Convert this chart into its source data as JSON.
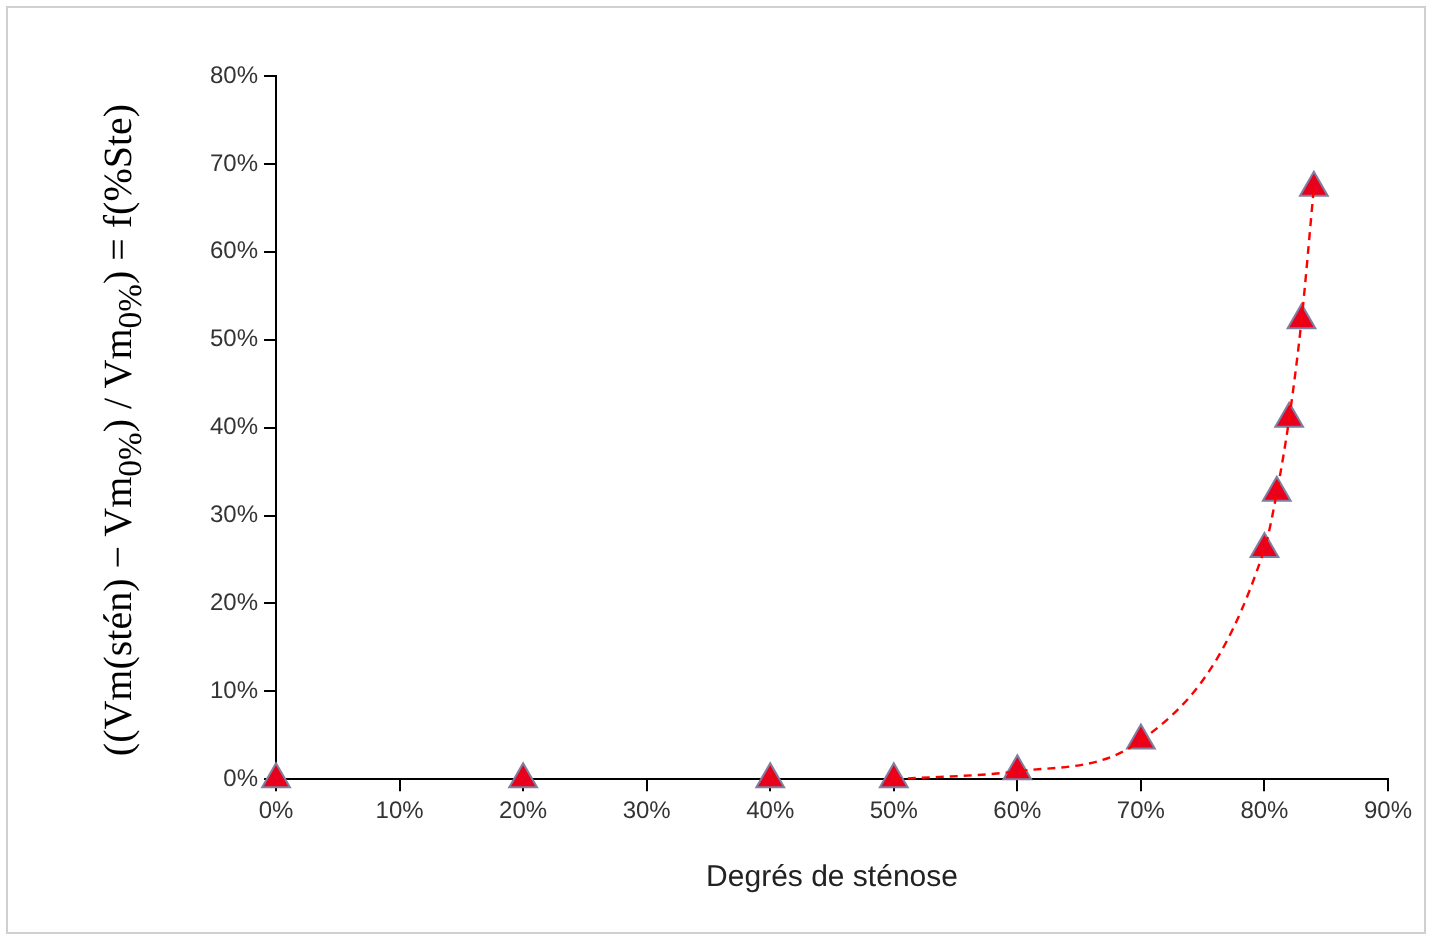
{
  "chart_data": {
    "type": "scatter",
    "xlabel": "Degrés de sténose",
    "ylabel": "((Vm(stén) − Vm$_{0%}$) / Vm$_{0%}$) = f(%Ste)",
    "xlim": [
      0,
      90
    ],
    "xticks": [
      {
        "value": 0,
        "label": "0%"
      },
      {
        "value": 10,
        "label": "10%"
      },
      {
        "value": 20,
        "label": "20%"
      },
      {
        "value": 30,
        "label": "30%"
      },
      {
        "value": 40,
        "label": "40%"
      },
      {
        "value": 50,
        "label": "50%"
      },
      {
        "value": 60,
        "label": "60%"
      },
      {
        "value": 70,
        "label": "70%"
      },
      {
        "value": 80,
        "label": "80%"
      },
      {
        "value": 90,
        "label": "90%"
      }
    ],
    "ylim": [
      0,
      80
    ],
    "yticks": [
      {
        "value": 0,
        "label": "0%"
      },
      {
        "value": 10,
        "label": "10%"
      },
      {
        "value": 20,
        "label": "20%"
      },
      {
        "value": 30,
        "label": "30%"
      },
      {
        "value": 40,
        "label": "40%"
      },
      {
        "value": 50,
        "label": "50%"
      },
      {
        "value": 60,
        "label": "60%"
      },
      {
        "value": 70,
        "label": "70%"
      },
      {
        "value": 80,
        "label": "80%"
      }
    ],
    "grid": false,
    "legend": false,
    "series": [
      {
        "type": "line",
        "color": "#ff0000",
        "marker": "none",
        "line_style": "dashed",
        "x": [
          50,
          60,
          70,
          80,
          81,
          82,
          83,
          84
        ],
        "values": [
          0,
          0.9,
          4.4,
          26.2,
          32.6,
          41,
          52.2,
          67.3
        ]
      },
      {
        "color": "#e8001c",
        "marker": "triangle",
        "x": [
          0,
          20,
          40,
          50,
          60,
          70,
          80,
          81,
          82,
          83,
          84
        ],
        "values": [
          0,
          0,
          0,
          0,
          0.9,
          4.4,
          26.2,
          32.6,
          41,
          52.2,
          67.3
        ]
      }
    ]
  }
}
